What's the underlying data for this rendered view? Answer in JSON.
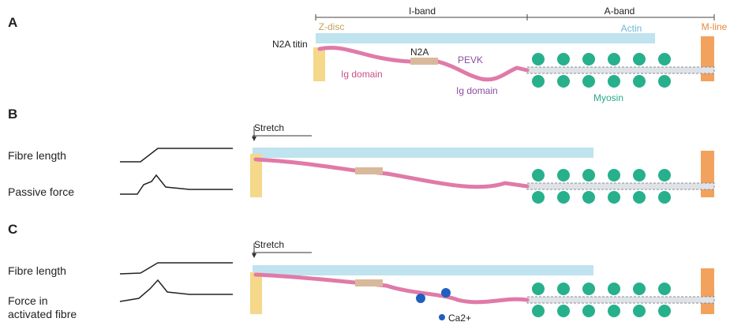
{
  "panel_a": {
    "label": "A",
    "i_band": "I-band",
    "a_band": "A-band",
    "z_disc": "Z-disc",
    "actin": "Actin",
    "m_line": "M-line",
    "titin": "N2A titin",
    "n2a": "N2A",
    "pevk": "PEVK",
    "ig_domain_1": "Ig domain",
    "ig_domain_2": "Ig domain",
    "myosin": "Myosin"
  },
  "panel_b": {
    "label": "B",
    "stretch": "Stretch",
    "fibre_length": "Fibre length",
    "passive_force": "Passive force"
  },
  "panel_c": {
    "label": "C",
    "stretch": "Stretch",
    "fibre_length": "Fibre length",
    "force_lines": [
      "Force in",
      "activated fibre"
    ],
    "calcium": "Ca2+"
  }
}
